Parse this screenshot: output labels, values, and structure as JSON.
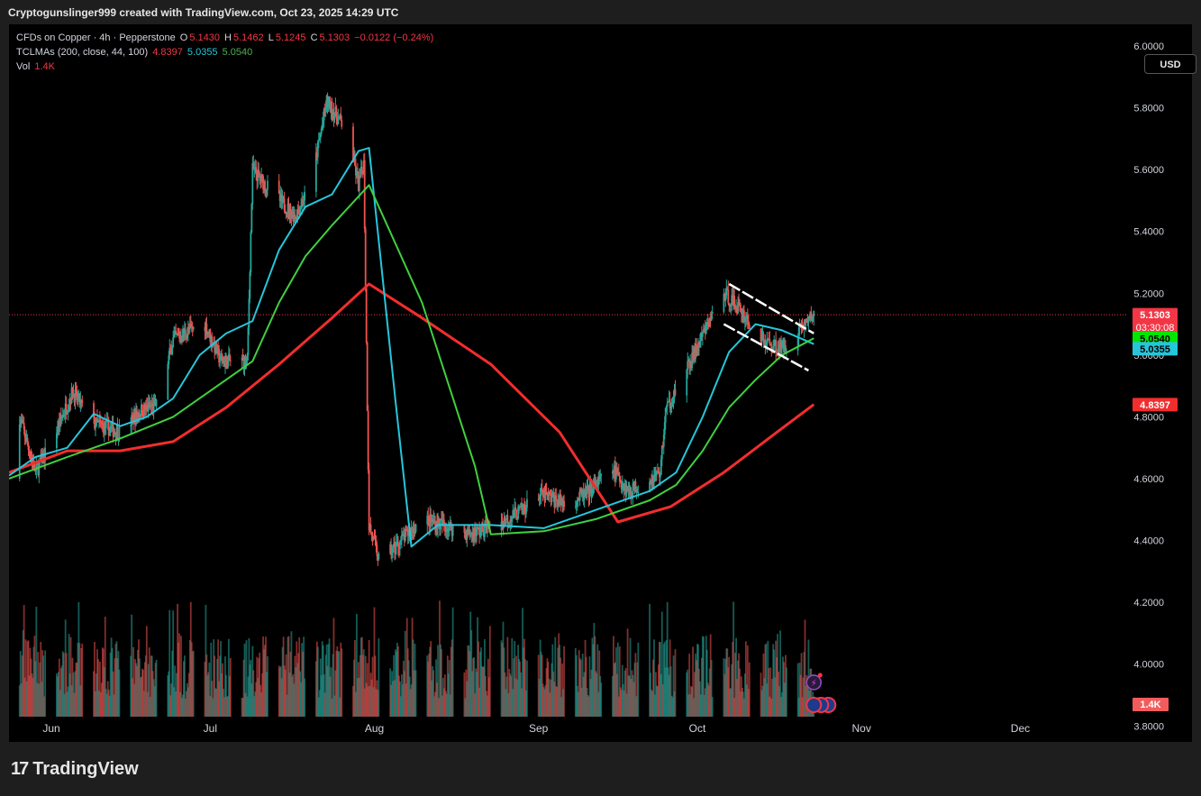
{
  "caption": "Cryptogunslinger999 created with TradingView.com, Oct 23, 2025 14:29 UTC",
  "legend": {
    "line1": {
      "symbol": "CFDs on Copper · 4h · Pepperstone",
      "o_label": "O",
      "o_value": "5.1430",
      "h_label": "H",
      "h_value": "5.1462",
      "l_label": "L",
      "l_value": "5.1245",
      "c_label": "C",
      "c_value": "5.1303",
      "change": "−0.0122 (−0.24%)"
    },
    "line2": {
      "name": "TCLMAs (200, close, 44, 100)",
      "v1": "4.8397",
      "v2": "5.0355",
      "v3": "5.0540"
    },
    "line3": {
      "name": "Vol",
      "value": "1.4K"
    }
  },
  "currency_button": "USD",
  "colors": {
    "up": "#26a69a",
    "down": "#ef5350",
    "ma200": "#f22d2d",
    "ma44": "#26c6da",
    "ma100": "#3fd13f",
    "price_line": "#f23645",
    "pattern": "#ffffff"
  },
  "tags": {
    "last_price": "5.1303",
    "countdown": "03:30:08",
    "ma100": "5.0540",
    "ma44": "5.0355",
    "ma200": "4.8397",
    "volume": "1.4K"
  },
  "footer": {
    "brand": "TradingView",
    "mark": "17"
  },
  "chart_data": {
    "type": "candlestick",
    "timeframe": "4h",
    "x_ticks": [
      "Jun",
      "Jul",
      "Aug",
      "Sep",
      "Oct",
      "Nov",
      "Dec"
    ],
    "y_ticks": [
      "6.0000",
      "5.8000",
      "5.6000",
      "5.4000",
      "5.2000",
      "5.0000",
      "4.8000",
      "4.6000",
      "4.4000",
      "4.2000",
      "4.0000",
      "3.8000"
    ],
    "y_range": [
      3.83,
      6.07
    ],
    "x_range": [
      "2025-05-24",
      "2025-12-21"
    ],
    "last_bar": {
      "date": "2025-10-23",
      "open": 5.143,
      "high": 5.1462,
      "low": 5.1245,
      "close": 5.1303
    },
    "price_path": [
      {
        "date": "2025-05-24",
        "price": 4.6
      },
      {
        "date": "2025-05-26",
        "price": 4.8
      },
      {
        "date": "2025-05-29",
        "price": 4.62
      },
      {
        "date": "2025-06-01",
        "price": 4.72
      },
      {
        "date": "2025-06-05",
        "price": 4.88
      },
      {
        "date": "2025-06-09",
        "price": 4.78
      },
      {
        "date": "2025-06-14",
        "price": 4.75
      },
      {
        "date": "2025-06-18",
        "price": 4.82
      },
      {
        "date": "2025-06-21",
        "price": 4.84
      },
      {
        "date": "2025-06-24",
        "price": 5.05
      },
      {
        "date": "2025-06-27",
        "price": 5.08
      },
      {
        "date": "2025-06-30",
        "price": 5.1
      },
      {
        "date": "2025-07-03",
        "price": 4.98
      },
      {
        "date": "2025-07-08",
        "price": 4.98
      },
      {
        "date": "2025-07-09",
        "price": 5.6
      },
      {
        "date": "2025-07-13",
        "price": 5.52
      },
      {
        "date": "2025-07-17",
        "price": 5.45
      },
      {
        "date": "2025-07-20",
        "price": 5.55
      },
      {
        "date": "2025-07-23",
        "price": 5.82
      },
      {
        "date": "2025-07-27",
        "price": 5.72
      },
      {
        "date": "2025-07-29",
        "price": 5.55
      },
      {
        "date": "2025-07-30",
        "price": 5.62
      },
      {
        "date": "2025-07-31",
        "price": 4.45
      },
      {
        "date": "2025-08-02",
        "price": 4.33
      },
      {
        "date": "2025-08-05",
        "price": 4.38
      },
      {
        "date": "2025-08-10",
        "price": 4.47
      },
      {
        "date": "2025-08-14",
        "price": 4.45
      },
      {
        "date": "2025-08-19",
        "price": 4.42
      },
      {
        "date": "2025-08-24",
        "price": 4.45
      },
      {
        "date": "2025-08-29",
        "price": 4.5
      },
      {
        "date": "2025-09-01",
        "price": 4.55
      },
      {
        "date": "2025-09-06",
        "price": 4.52
      },
      {
        "date": "2025-09-10",
        "price": 4.55
      },
      {
        "date": "2025-09-15",
        "price": 4.63
      },
      {
        "date": "2025-09-18",
        "price": 4.56
      },
      {
        "date": "2025-09-24",
        "price": 4.62
      },
      {
        "date": "2025-09-25",
        "price": 4.82
      },
      {
        "date": "2025-09-29",
        "price": 4.95
      },
      {
        "date": "2025-10-03",
        "price": 5.1
      },
      {
        "date": "2025-10-06",
        "price": 5.2
      },
      {
        "date": "2025-10-09",
        "price": 5.15
      },
      {
        "date": "2025-10-13",
        "price": 5.05
      },
      {
        "date": "2025-10-17",
        "price": 5.02
      },
      {
        "date": "2025-10-20",
        "price": 5.08
      },
      {
        "date": "2025-10-23",
        "price": 5.13
      }
    ],
    "series": [
      {
        "name": "TCLMAs 200",
        "color": "#f22d2d",
        "points": [
          {
            "date": "2025-05-24",
            "value": 4.62
          },
          {
            "date": "2025-06-04",
            "value": 4.69
          },
          {
            "date": "2025-06-14",
            "value": 4.69
          },
          {
            "date": "2025-06-24",
            "value": 4.72
          },
          {
            "date": "2025-07-04",
            "value": 4.83
          },
          {
            "date": "2025-07-14",
            "value": 4.97
          },
          {
            "date": "2025-07-24",
            "value": 5.12
          },
          {
            "date": "2025-07-31",
            "value": 5.23
          },
          {
            "date": "2025-08-10",
            "value": 5.12
          },
          {
            "date": "2025-08-23",
            "value": 4.97
          },
          {
            "date": "2025-09-05",
            "value": 4.75
          },
          {
            "date": "2025-09-16",
            "value": 4.46
          },
          {
            "date": "2025-09-26",
            "value": 4.51
          },
          {
            "date": "2025-10-06",
            "value": 4.62
          },
          {
            "date": "2025-10-16",
            "value": 4.75
          },
          {
            "date": "2025-10-23",
            "value": 4.84
          }
        ]
      },
      {
        "name": "TCLMAs 44",
        "color": "#26c6da",
        "points": [
          {
            "date": "2025-05-24",
            "value": 4.61
          },
          {
            "date": "2025-05-29",
            "value": 4.67
          },
          {
            "date": "2025-06-04",
            "value": 4.7
          },
          {
            "date": "2025-06-09",
            "value": 4.81
          },
          {
            "date": "2025-06-14",
            "value": 4.77
          },
          {
            "date": "2025-06-19",
            "value": 4.8
          },
          {
            "date": "2025-06-24",
            "value": 4.86
          },
          {
            "date": "2025-06-29",
            "value": 5.0
          },
          {
            "date": "2025-07-04",
            "value": 5.07
          },
          {
            "date": "2025-07-09",
            "value": 5.11
          },
          {
            "date": "2025-07-14",
            "value": 5.34
          },
          {
            "date": "2025-07-19",
            "value": 5.48
          },
          {
            "date": "2025-07-24",
            "value": 5.52
          },
          {
            "date": "2025-07-29",
            "value": 5.66
          },
          {
            "date": "2025-07-31",
            "value": 5.67
          },
          {
            "date": "2025-08-05",
            "value": 4.85
          },
          {
            "date": "2025-08-08",
            "value": 4.38
          },
          {
            "date": "2025-08-13",
            "value": 4.45
          },
          {
            "date": "2025-08-23",
            "value": 4.45
          },
          {
            "date": "2025-09-02",
            "value": 4.44
          },
          {
            "date": "2025-09-12",
            "value": 4.5
          },
          {
            "date": "2025-09-22",
            "value": 4.56
          },
          {
            "date": "2025-09-27",
            "value": 4.62
          },
          {
            "date": "2025-10-02",
            "value": 4.8
          },
          {
            "date": "2025-10-07",
            "value": 5.01
          },
          {
            "date": "2025-10-12",
            "value": 5.1
          },
          {
            "date": "2025-10-17",
            "value": 5.08
          },
          {
            "date": "2025-10-23",
            "value": 5.0355
          }
        ]
      },
      {
        "name": "TCLMAs 100",
        "color": "#3fd13f",
        "points": [
          {
            "date": "2025-05-24",
            "value": 4.6
          },
          {
            "date": "2025-06-04",
            "value": 4.67
          },
          {
            "date": "2025-06-14",
            "value": 4.73
          },
          {
            "date": "2025-06-24",
            "value": 4.8
          },
          {
            "date": "2025-07-04",
            "value": 4.92
          },
          {
            "date": "2025-07-09",
            "value": 4.98
          },
          {
            "date": "2025-07-14",
            "value": 5.17
          },
          {
            "date": "2025-07-19",
            "value": 5.32
          },
          {
            "date": "2025-07-24",
            "value": 5.42
          },
          {
            "date": "2025-07-31",
            "value": 5.55
          },
          {
            "date": "2025-08-10",
            "value": 5.17
          },
          {
            "date": "2025-08-20",
            "value": 4.64
          },
          {
            "date": "2025-08-23",
            "value": 4.42
          },
          {
            "date": "2025-09-02",
            "value": 4.43
          },
          {
            "date": "2025-09-12",
            "value": 4.47
          },
          {
            "date": "2025-09-22",
            "value": 4.53
          },
          {
            "date": "2025-09-27",
            "value": 4.58
          },
          {
            "date": "2025-10-02",
            "value": 4.69
          },
          {
            "date": "2025-10-07",
            "value": 4.83
          },
          {
            "date": "2025-10-12",
            "value": 4.92
          },
          {
            "date": "2025-10-17",
            "value": 5.0
          },
          {
            "date": "2025-10-23",
            "value": 5.054
          }
        ]
      }
    ],
    "pattern_lines": [
      {
        "from": {
          "date": "2025-10-07",
          "price": 5.23
        },
        "to": {
          "date": "2025-10-23",
          "price": 5.07
        }
      },
      {
        "from": {
          "date": "2025-10-06",
          "price": 5.1
        },
        "to": {
          "date": "2025-10-22",
          "price": 4.95
        }
      }
    ],
    "last_price_line": 5.1303,
    "grid": false
  }
}
